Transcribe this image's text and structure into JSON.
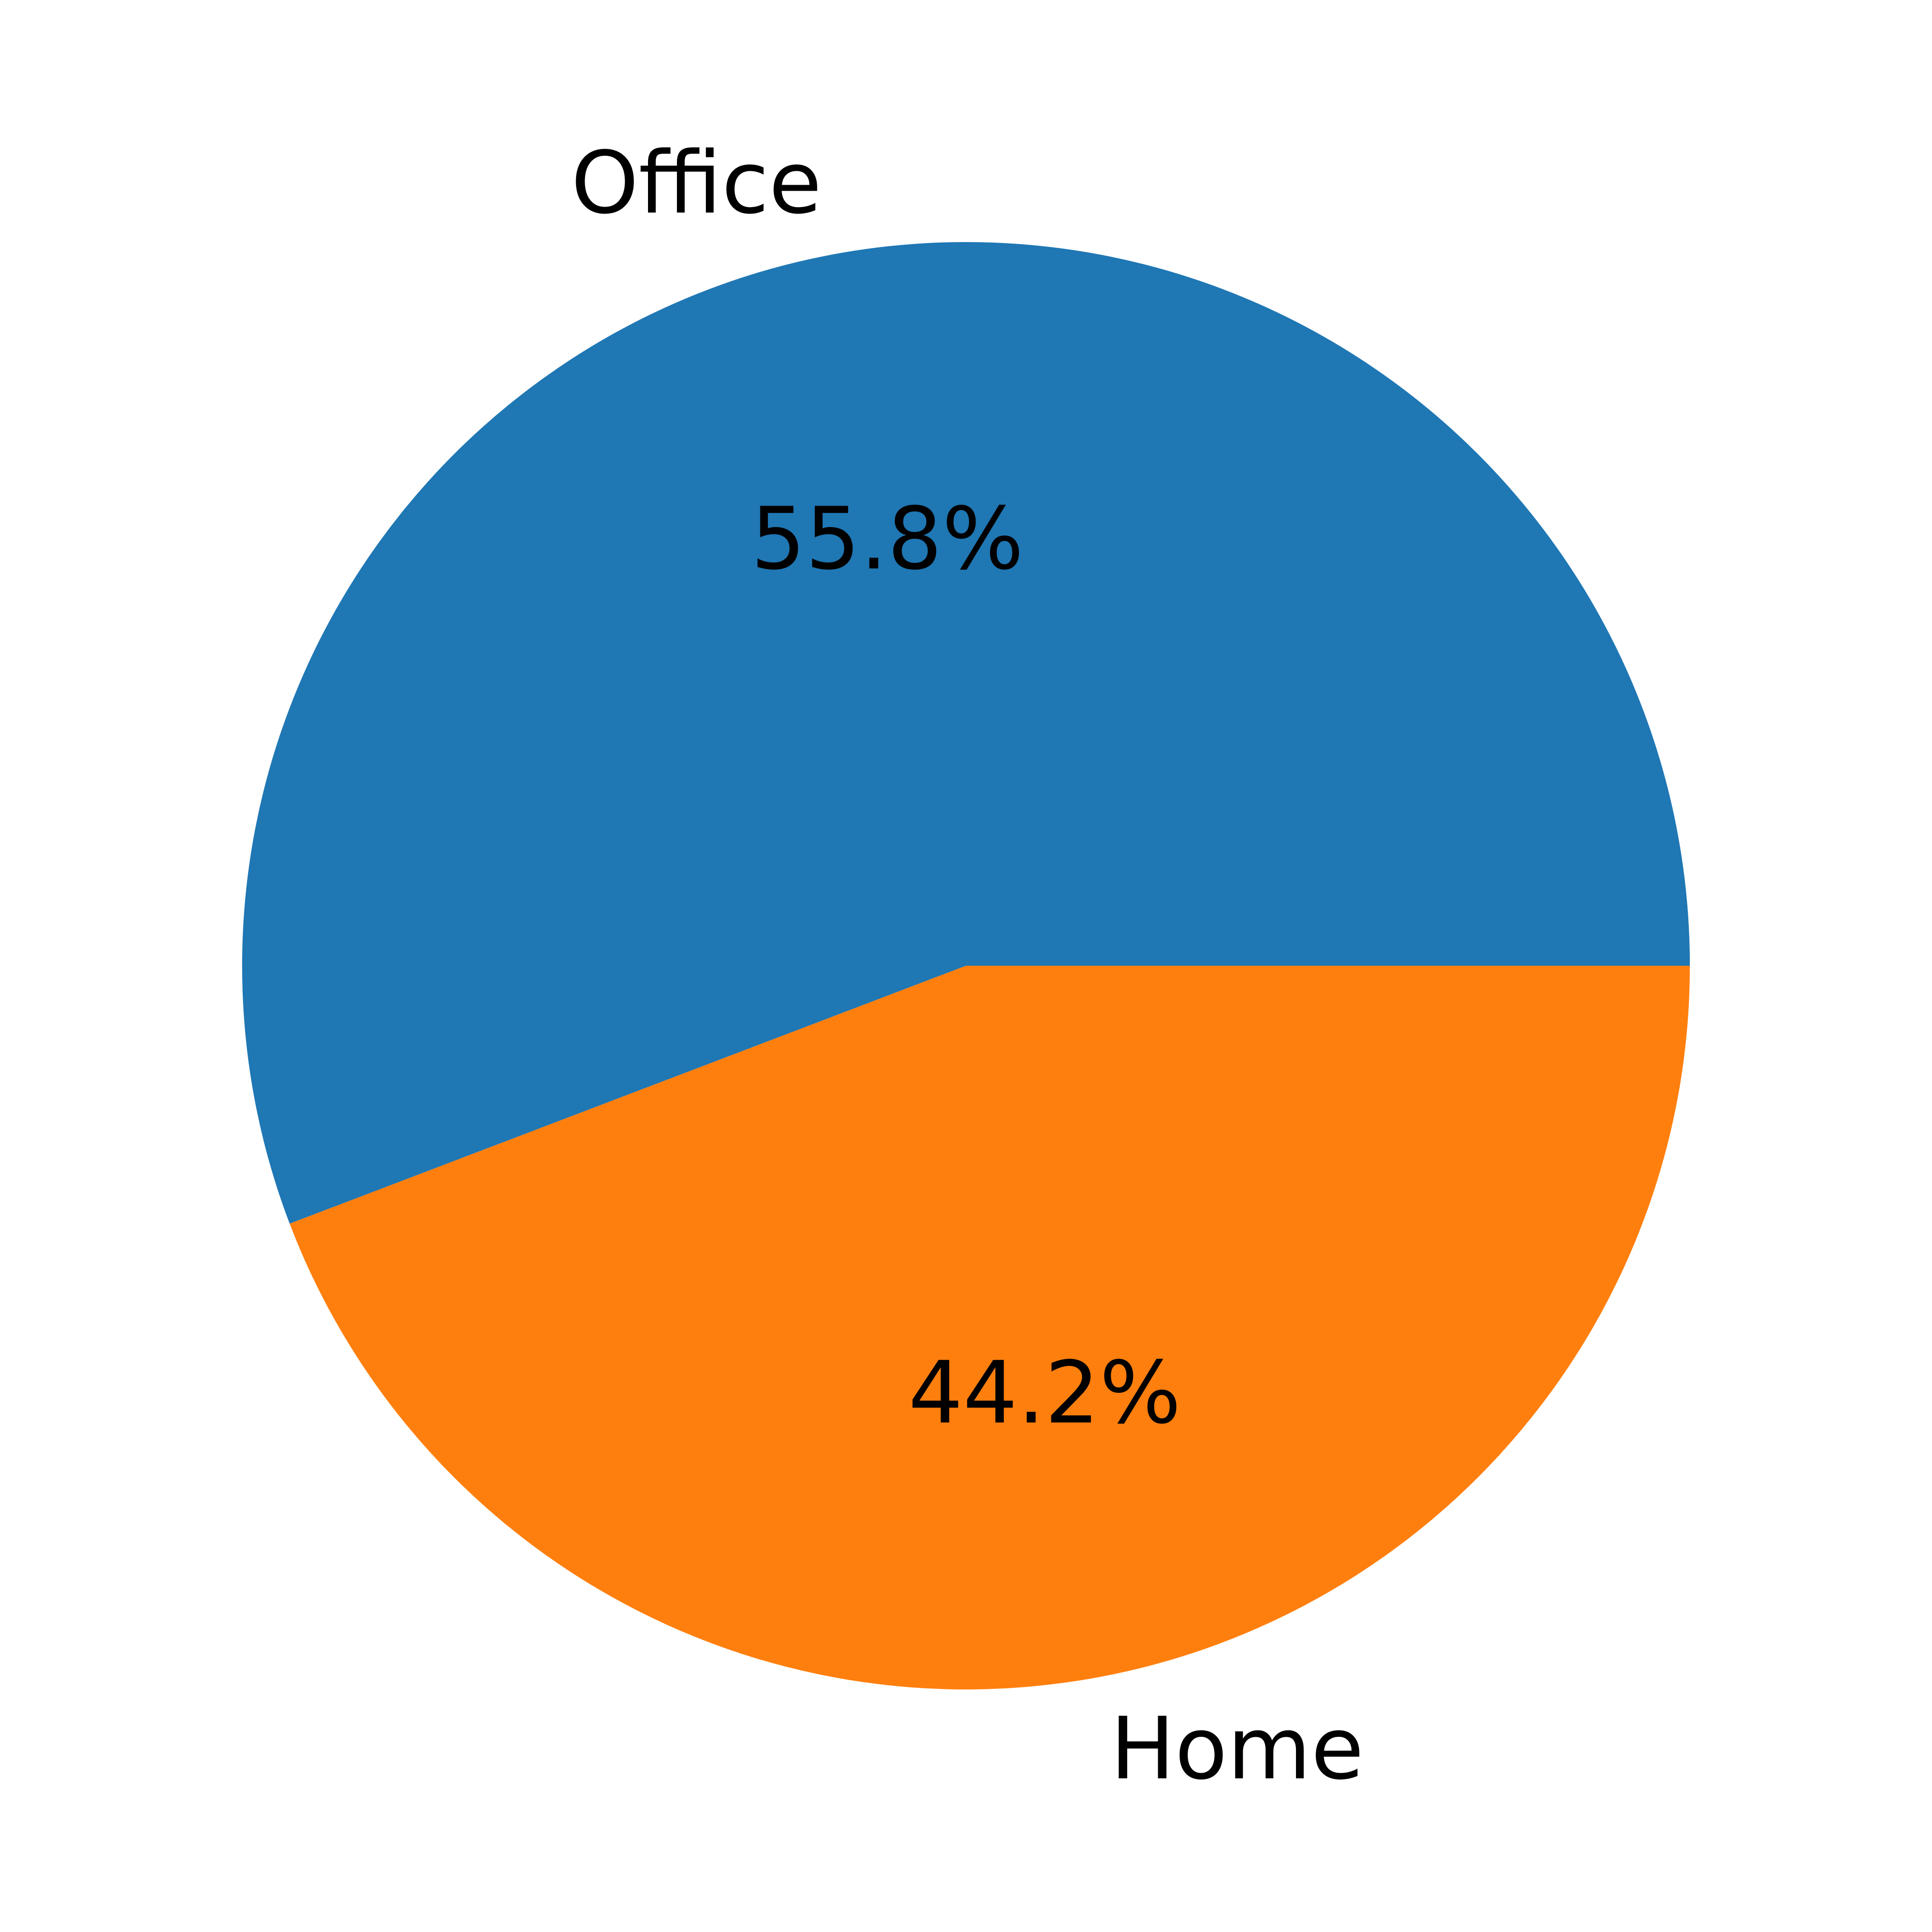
{
  "chart_data": {
    "type": "pie",
    "title": "",
    "categories": [
      "Office",
      "Home"
    ],
    "values": [
      55.8,
      44.2
    ],
    "value_labels": [
      "55.8%",
      "44.2%"
    ],
    "colors": [
      "#1f77b4",
      "#ff7f0e"
    ],
    "start_angle_deg": 0,
    "direction": "counterclockwise",
    "legend": "none"
  }
}
